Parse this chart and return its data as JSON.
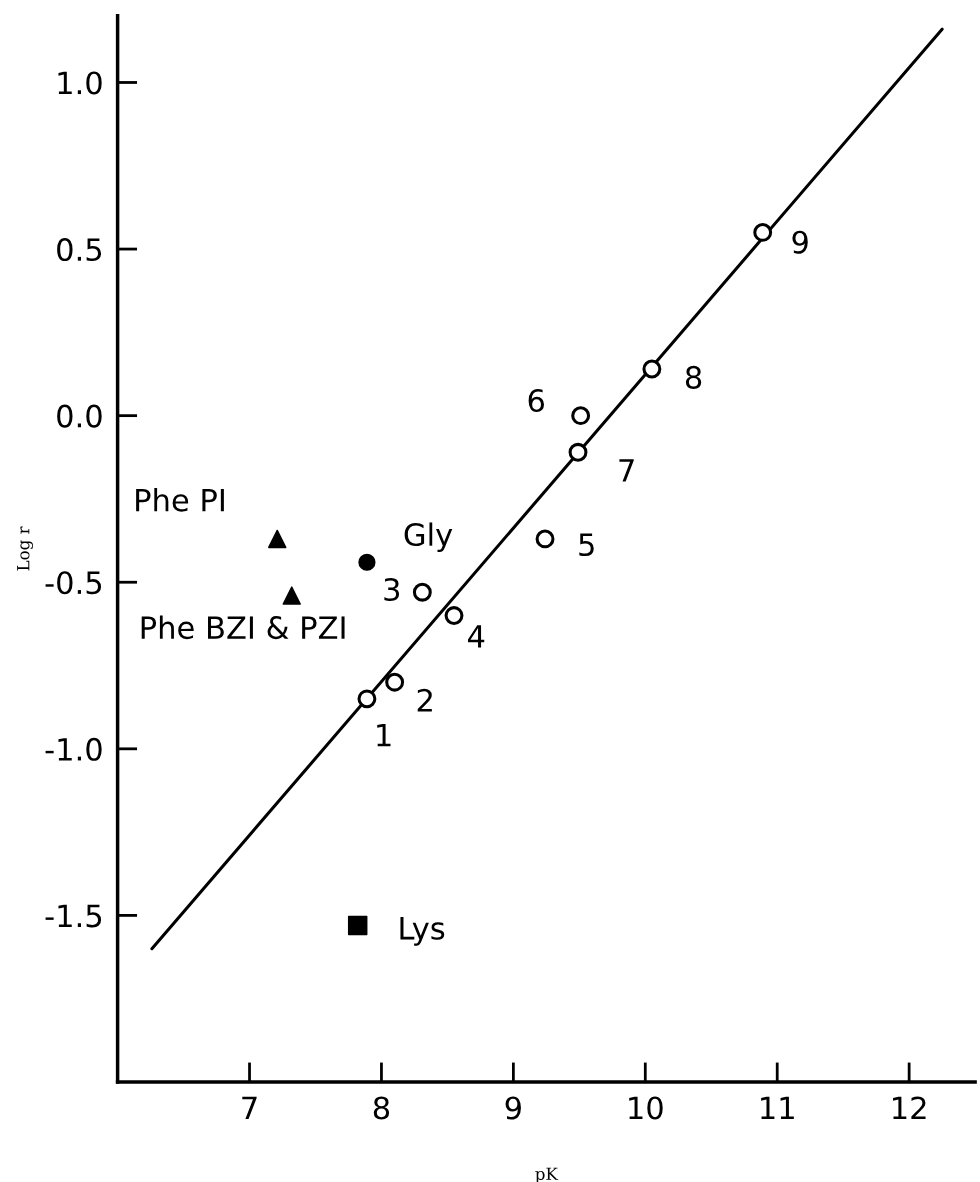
{
  "chart_data": {
    "type": "scatter",
    "xlabel": "pK",
    "ylabel": "Log r",
    "xlim": [
      6.0,
      12.5
    ],
    "ylim": [
      -2.0,
      1.2
    ],
    "xticks": [
      7,
      8,
      9,
      10,
      11,
      12
    ],
    "yticks": [
      -1.5,
      {
        "value": -1.0,
        "label": "-1.0"
      },
      -0.5,
      {
        "value": 0.0,
        "label": "0.0"
      },
      0.5,
      {
        "value": 1.0,
        "label": "1.0"
      }
    ],
    "grid": false,
    "series": [
      {
        "type": "line",
        "color": "#000000",
        "marker": "none",
        "line_style": "solid",
        "x": [
          6.26,
          12.25
        ],
        "values": [
          -1.6,
          1.16
        ]
      },
      {
        "color": "#000000",
        "marker": "circle",
        "x": [
          7.89,
          8.1,
          8.31,
          8.55,
          9.24,
          9.51,
          9.49,
          10.05,
          10.89
        ],
        "values": [
          -0.85,
          -0.8,
          -0.53,
          -0.6,
          -0.37,
          0.0,
          -0.11,
          0.14,
          0.55
        ]
      },
      {
        "color": "#000000",
        "marker": "triangle",
        "x": [
          7.21,
          7.32
        ],
        "values": [
          -0.37,
          -0.54
        ]
      },
      {
        "color": "#000000",
        "marker": "circle",
        "x": [
          7.89
        ],
        "values": [
          -0.44
        ]
      },
      {
        "color": "#000000",
        "marker": "square",
        "x": [
          7.82
        ],
        "values": [
          -1.53
        ]
      }
    ],
    "annotations": [
      {
        "text": "1",
        "x": 7.89,
        "y": -0.85
      },
      {
        "text": "2",
        "x": 8.1,
        "y": -0.8
      },
      {
        "text": "3",
        "x": 8.31,
        "y": -0.53
      },
      {
        "text": "4",
        "x": 8.55,
        "y": -0.6
      },
      {
        "text": "5",
        "x": 9.24,
        "y": -0.37
      },
      {
        "text": "6",
        "x": 9.51,
        "y": 0.0
      },
      {
        "text": "7",
        "x": 9.49,
        "y": -0.11
      },
      {
        "text": "8",
        "x": 10.05,
        "y": 0.14
      },
      {
        "text": "9",
        "x": 10.89,
        "y": 0.55
      },
      {
        "text": "Phe PI",
        "x": 7.21,
        "y": -0.37
      },
      {
        "text": "Phe BZI & PZI",
        "x": 7.32,
        "y": -0.54
      },
      {
        "text": "Gly",
        "x": 7.89,
        "y": -0.44
      },
      {
        "text": "Lys",
        "x": 7.82,
        "y": -1.53
      }
    ]
  }
}
